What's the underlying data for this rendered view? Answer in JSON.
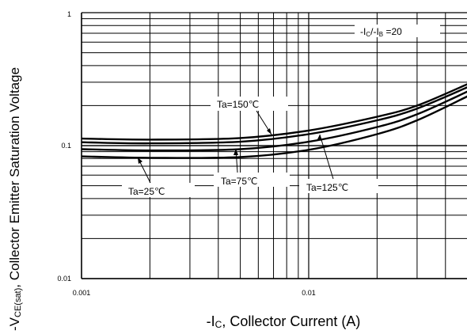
{
  "chart_data": {
    "type": "line",
    "xscale": "log",
    "yscale": "log",
    "xlim": [
      0.001,
      0.05
    ],
    "ylim": [
      0.01,
      1
    ],
    "x_ticks": [
      "0.001",
      "0.01"
    ],
    "y_ticks": [
      "0.01",
      "0.1",
      "1"
    ],
    "xlabel_parts": [
      "-I",
      "C",
      ", Collector Current (A)"
    ],
    "ylabel_parts": [
      "-V",
      "CE(sat)",
      ", Collector Emitter Saturation Voltage"
    ],
    "condition_parts": [
      "-I",
      "C",
      "/-I",
      "B",
      " =20"
    ],
    "grid": true,
    "series": [
      {
        "name": "Ta=150℃",
        "x": [
          0.001,
          0.002,
          0.005,
          0.01,
          0.02,
          0.03,
          0.05
        ],
        "y": [
          0.113,
          0.111,
          0.114,
          0.13,
          0.165,
          0.2,
          0.29
        ]
      },
      {
        "name": "Ta=125℃",
        "x": [
          0.001,
          0.002,
          0.005,
          0.01,
          0.02,
          0.03,
          0.05
        ],
        "y": [
          0.106,
          0.104,
          0.107,
          0.122,
          0.155,
          0.19,
          0.275
        ]
      },
      {
        "name": "Ta=75℃",
        "x": [
          0.001,
          0.002,
          0.005,
          0.01,
          0.02,
          0.03,
          0.05
        ],
        "y": [
          0.094,
          0.092,
          0.094,
          0.107,
          0.138,
          0.172,
          0.255
        ]
      },
      {
        "name": "Ta=25℃",
        "x": [
          0.001,
          0.002,
          0.005,
          0.01,
          0.02,
          0.03,
          0.05
        ],
        "y": [
          0.083,
          0.081,
          0.082,
          0.093,
          0.122,
          0.155,
          0.235
        ]
      }
    ]
  }
}
